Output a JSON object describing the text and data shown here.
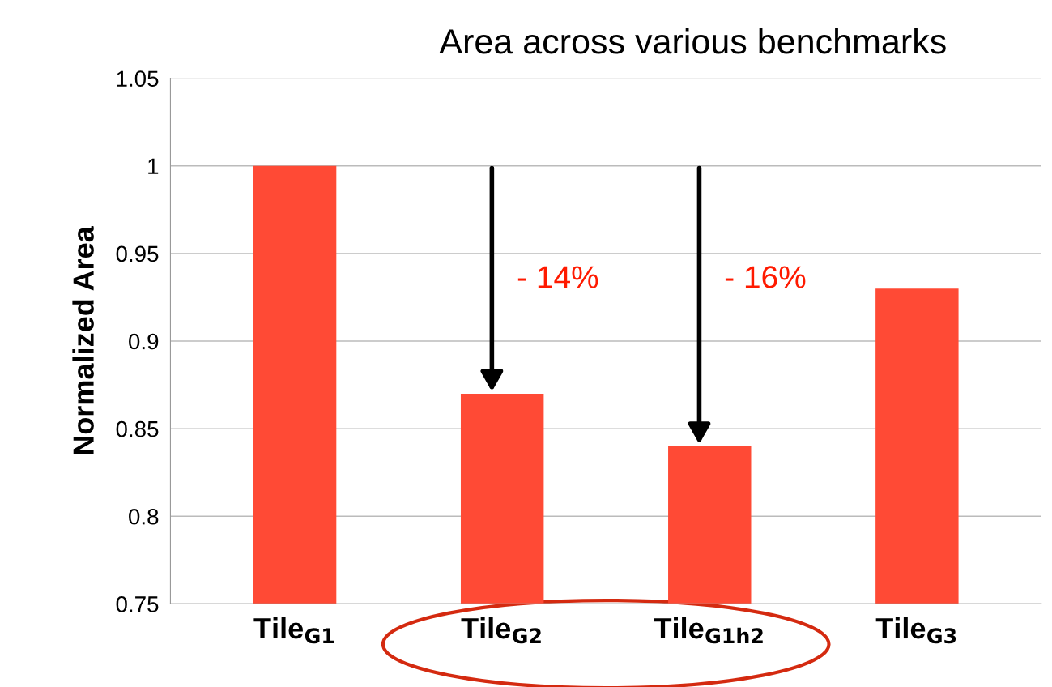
{
  "chart_data": {
    "type": "bar",
    "title": "Area across various benchmarks",
    "ylabel": "Normalized Area",
    "categories": [
      "Tile$_{G1}$",
      "Tile$_{G2}$",
      "Tile$_{G1h2}$",
      "Tile$_{G3}$"
    ],
    "values": [
      1.0,
      0.87,
      0.84,
      0.93
    ],
    "color": "#ff4a35",
    "ylim": [
      0.75,
      1.05
    ],
    "yticks": [
      0.75,
      0.8,
      0.85,
      0.9,
      0.95,
      1,
      1.05
    ],
    "grid": "y",
    "annotations": [
      "- 14%",
      "- 16%"
    ]
  }
}
